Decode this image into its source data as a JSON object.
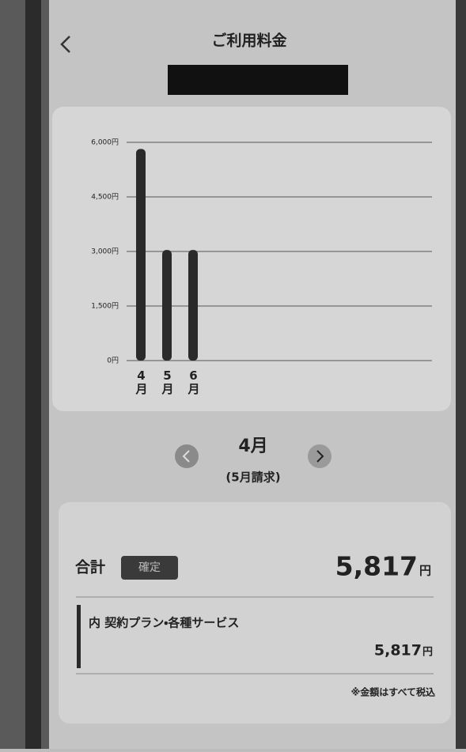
{
  "header": {
    "title": "ご利用料金"
  },
  "chart_data": {
    "type": "bar",
    "categories": [
      "4月",
      "5月",
      "6月"
    ],
    "values": [
      5817,
      3040,
      3040
    ],
    "color": "#2a2a2a",
    "ylim": [
      0,
      6000
    ],
    "yticks": [
      {
        "value": 0,
        "label": "0円"
      },
      {
        "value": 1500,
        "label": "1,500円"
      },
      {
        "value": 3000,
        "label": "3,000円"
      },
      {
        "value": 4500,
        "label": "4,500円"
      },
      {
        "value": 6000,
        "label": "6,000円"
      }
    ],
    "grid": true
  },
  "month_nav": {
    "month": "4月",
    "billing": "(5月請求)"
  },
  "summary": {
    "label": "合計",
    "status": "確定",
    "total": "5,817",
    "total_unit": "円",
    "item_label": "内 契約プラン・各種サービス",
    "item_amount": "5,817",
    "item_unit": "円",
    "note": "※金額はすべて税込"
  }
}
